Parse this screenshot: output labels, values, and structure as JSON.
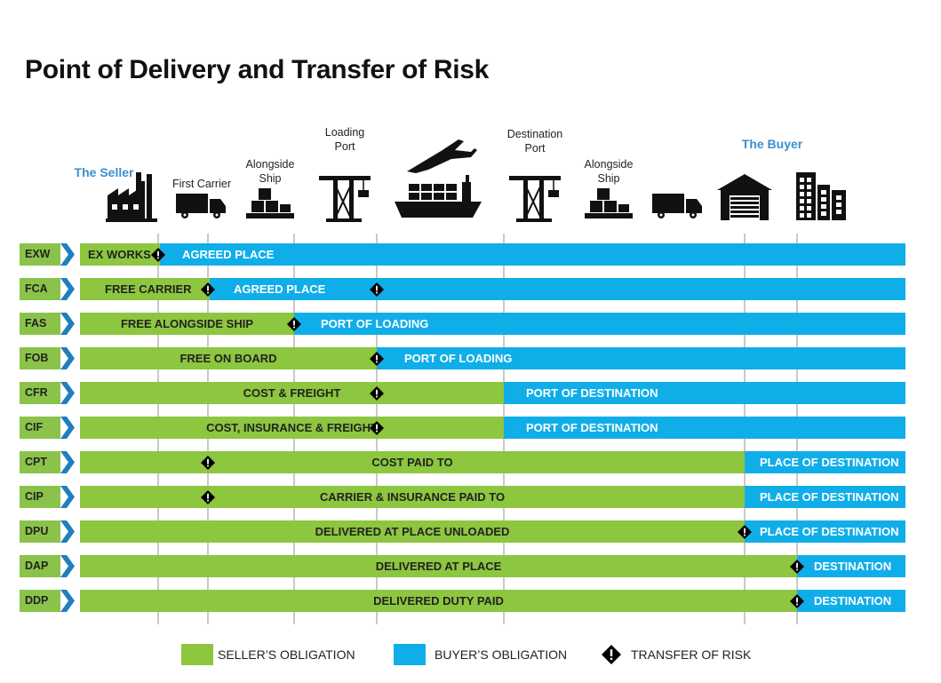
{
  "title": "Point of Delivery and Transfer of Risk",
  "colors": {
    "seller": "#8dc63f",
    "buyer": "#10aee8",
    "code_bg": "#8bc34a",
    "chevron": "#1f7fbf",
    "party_label": "#3a8fd0",
    "risk": "#000000"
  },
  "icons": [
    {
      "name": "factory-icon",
      "label": "The Seller",
      "party": true
    },
    {
      "name": "truck-icon",
      "label": "First Carrier",
      "party": false
    },
    {
      "name": "cargo-boxes-icon",
      "label": "Alongside\nShip",
      "party": false
    },
    {
      "name": "crane-icon",
      "label": "Loading\nPort",
      "party": false
    },
    {
      "name": "ship-plane-icon",
      "label": "",
      "party": false
    },
    {
      "name": "crane-icon",
      "label": "Destination\nPort",
      "party": false
    },
    {
      "name": "cargo-boxes-icon",
      "label": "Alongside\nShip",
      "party": false
    },
    {
      "name": "truck-icon",
      "label": "",
      "party": false
    },
    {
      "name": "warehouse-icon",
      "label": "The Buyer",
      "party": true
    },
    {
      "name": "buildings-icon",
      "label": "",
      "party": false
    }
  ],
  "rows": [
    {
      "code": "EXW",
      "segments": [
        {
          "c": "g",
          "label": "EX WORKS"
        },
        {
          "c": "b",
          "label": "AGREED PLACE"
        }
      ],
      "risk": [
        "ex-works"
      ]
    },
    {
      "code": "FCA",
      "segments": [
        {
          "c": "g",
          "label": "FREE CARRIER"
        },
        {
          "c": "b",
          "label": "AGREED PLACE"
        }
      ],
      "risk": [
        "first-carrier",
        "loading-port"
      ]
    },
    {
      "code": "FAS",
      "segments": [
        {
          "c": "g",
          "label": "FREE ALONGSIDE SHIP"
        },
        {
          "c": "b",
          "label": "PORT OF LOADING"
        }
      ],
      "risk": [
        "alongside-ship"
      ]
    },
    {
      "code": "FOB",
      "segments": [
        {
          "c": "g",
          "label": "FREE  ON BOARD"
        },
        {
          "c": "b",
          "label": "PORT OF LOADING"
        }
      ],
      "risk": [
        "loading-port"
      ]
    },
    {
      "code": "CFR",
      "segments": [
        {
          "c": "g",
          "label": "COST & FREIGHT"
        },
        {
          "c": "b",
          "label": "PORT OF DESTINATION"
        }
      ],
      "risk": [
        "loading-port"
      ]
    },
    {
      "code": "CIF",
      "segments": [
        {
          "c": "g",
          "label": "COST, INSURANCE & FREIGHT"
        },
        {
          "c": "b",
          "label": "PORT OF DESTINATION"
        }
      ],
      "risk": [
        "loading-port"
      ]
    },
    {
      "code": "CPT",
      "segments": [
        {
          "c": "g",
          "label": "COST PAID TO"
        },
        {
          "c": "b",
          "label": "PLACE OF DESTINATION"
        }
      ],
      "risk": [
        "first-carrier"
      ]
    },
    {
      "code": "CIP",
      "segments": [
        {
          "c": "g",
          "label": "CARRIER & INSURANCE PAID TO"
        },
        {
          "c": "b",
          "label": "PLACE OF DESTINATION"
        }
      ],
      "risk": [
        "first-carrier"
      ]
    },
    {
      "code": "DPU",
      "segments": [
        {
          "c": "g",
          "label": "DELIVERED AT PLACE UNLOADED"
        },
        {
          "c": "b",
          "label": "PLACE OF DESTINATION"
        }
      ],
      "risk": [
        "buyer-warehouse"
      ]
    },
    {
      "code": "DAP",
      "segments": [
        {
          "c": "g",
          "label": "DELIVERED AT PLACE"
        },
        {
          "c": "b",
          "label": "DESTINATION"
        }
      ],
      "risk": [
        "buyer-premises"
      ]
    },
    {
      "code": "DDP",
      "segments": [
        {
          "c": "g",
          "label": "DELIVERED DUTY PAID"
        },
        {
          "c": "b",
          "label": "DESTINATION"
        }
      ],
      "risk": [
        "buyer-premises"
      ]
    }
  ],
  "legend": [
    {
      "type": "box",
      "color": "#8dc63f",
      "label": "SELLER’S OBLIGATION"
    },
    {
      "type": "box",
      "color": "#10aee8",
      "label": "BUYER’S OBLIGATION"
    },
    {
      "type": "diamond",
      "label": "TRANSFER OF RISK"
    }
  ]
}
